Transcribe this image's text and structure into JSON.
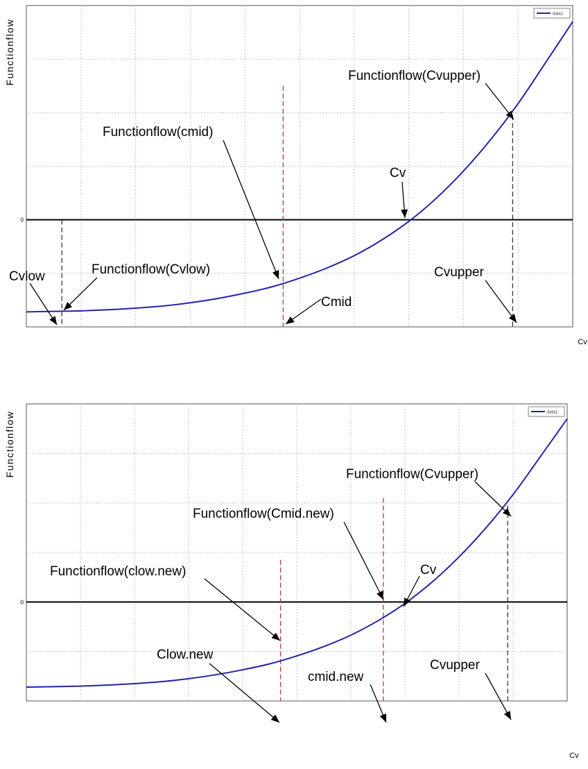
{
  "chart_data": [
    {
      "type": "line",
      "xlabel": "Cv",
      "ylabel": "Functionflow",
      "ytick_labels": [
        "0"
      ],
      "legend": {
        "entries": [
          "data1"
        ],
        "placement": "top-right"
      },
      "grid": true,
      "xlim": [
        0,
        10
      ],
      "ylim": [
        -2,
        4
      ],
      "series": [
        {
          "name": "data1",
          "x": [
            0,
            0.5,
            1,
            1.5,
            2,
            2.5,
            3,
            3.5,
            4,
            4.5,
            5,
            5.5,
            6,
            6.5,
            7,
            7.5,
            8,
            8.5,
            9,
            9.5,
            10
          ],
          "y": [
            -1.72,
            -1.71,
            -1.7,
            -1.68,
            -1.65,
            -1.61,
            -1.55,
            -1.47,
            -1.37,
            -1.25,
            -1.09,
            -0.9,
            -0.67,
            -0.38,
            -0.03,
            0.4,
            0.91,
            1.5,
            2.17,
            2.93,
            3.7
          ]
        }
      ],
      "markers": [
        {
          "x": 0.65,
          "style": "dashed",
          "color": "#222222",
          "y0": -2.0,
          "y1": 0.0
        },
        {
          "x": 4.7,
          "style": "dashed",
          "color": "#d03030",
          "y0": -2.0,
          "y1": 2.5
        },
        {
          "x": 8.9,
          "style": "dashed",
          "color": "#222222",
          "y0": -2.0,
          "y1": 1.95
        }
      ],
      "annotations": [
        {
          "id": "a1",
          "text": "Functionflow(Cvupper)"
        },
        {
          "id": "a2",
          "text": "Functionflow(cmid)"
        },
        {
          "id": "a3",
          "text": "Cv"
        },
        {
          "id": "a4",
          "text": "Cvlow"
        },
        {
          "id": "a5",
          "text": "Functionflow(Cvlow)"
        },
        {
          "id": "a6",
          "text": "Cvupper"
        },
        {
          "id": "a7",
          "text": "Cmid"
        }
      ]
    },
    {
      "type": "line",
      "xlabel": "Cv",
      "ylabel": "Functionflow",
      "ytick_labels": [
        "0"
      ],
      "legend": {
        "entries": [
          "data1"
        ],
        "placement": "top-right"
      },
      "grid": true,
      "xlim": [
        0,
        10
      ],
      "ylim": [
        -2,
        4
      ],
      "series": [
        {
          "name": "data1",
          "x": [
            0,
            0.5,
            1,
            1.5,
            2,
            2.5,
            3,
            3.5,
            4,
            4.5,
            5,
            5.5,
            6,
            6.5,
            7,
            7.5,
            8,
            8.5,
            9,
            9.5,
            10
          ],
          "y": [
            -1.72,
            -1.71,
            -1.7,
            -1.68,
            -1.65,
            -1.61,
            -1.55,
            -1.47,
            -1.37,
            -1.25,
            -1.09,
            -0.9,
            -0.67,
            -0.38,
            -0.03,
            0.4,
            0.91,
            1.5,
            2.17,
            2.93,
            3.7
          ]
        }
      ],
      "markers": [
        {
          "x": 4.7,
          "style": "dashed",
          "color": "#d03030",
          "y0": -2.0,
          "y1": 0.85
        },
        {
          "x": 6.6,
          "style": "dashed",
          "color": "#d03030",
          "y0": -2.0,
          "y1": 2.1
        },
        {
          "x": 8.9,
          "style": "dashed",
          "color": "#222222",
          "y0": -2.0,
          "y1": 1.95
        }
      ],
      "annotations": [
        {
          "id": "b1",
          "text": "Functionflow(Cvupper)"
        },
        {
          "id": "b2",
          "text": "Functionflow(Cmid.new)"
        },
        {
          "id": "b3",
          "text": "Functionflow(clow.new)"
        },
        {
          "id": "b4",
          "text": "Cv"
        },
        {
          "id": "b5",
          "text": "Clow.new"
        },
        {
          "id": "b6",
          "text": "cmid.new"
        },
        {
          "id": "b7",
          "text": "Cvupper"
        }
      ]
    }
  ]
}
